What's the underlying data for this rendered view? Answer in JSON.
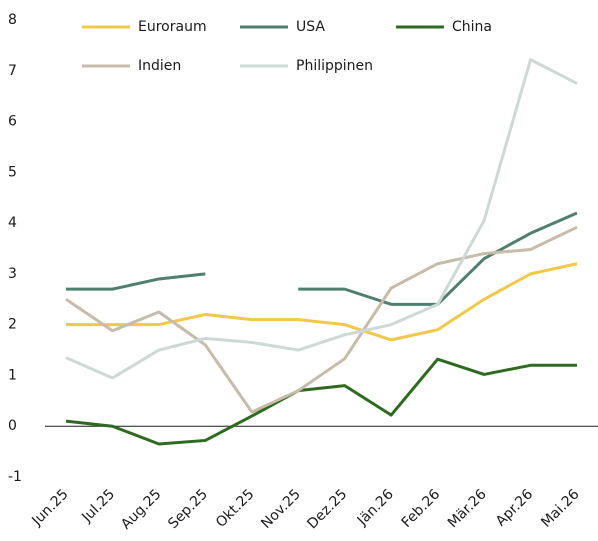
{
  "chart_data": {
    "type": "line",
    "categories": [
      "Jun.25",
      "Jul.25",
      "Aug.25",
      "Sep.25",
      "Okt.25",
      "Nov.25",
      "Dez.25",
      "Jän.26",
      "Feb.26",
      "Mär.26",
      "Apr.26",
      "Mai.26"
    ],
    "series": [
      {
        "name": "Euroraum",
        "color": "#f2c84b",
        "values": [
          2.0,
          2.0,
          2.0,
          2.2,
          2.1,
          2.1,
          2.0,
          1.7,
          1.9,
          2.5,
          3.0,
          3.2
        ]
      },
      {
        "name": "USA",
        "color": "#4f7f71",
        "values": [
          2.7,
          2.7,
          2.9,
          3.0,
          null,
          2.7,
          2.7,
          2.4,
          2.4,
          3.3,
          3.8,
          4.2
        ]
      },
      {
        "name": "China",
        "color": "#2e6a1f",
        "values": [
          0.1,
          0.0,
          -0.35,
          -0.28,
          0.2,
          0.7,
          0.8,
          0.22,
          1.32,
          1.02,
          1.2,
          1.2
        ]
      },
      {
        "name": "Indien",
        "color": "#c7bba9",
        "values": [
          2.5,
          1.88,
          2.25,
          1.6,
          0.28,
          0.7,
          1.33,
          2.72,
          3.2,
          3.4,
          3.48,
          3.92
        ]
      },
      {
        "name": "Philippinen",
        "color": "#cdd9d6",
        "values": [
          1.35,
          0.95,
          1.5,
          1.73,
          1.65,
          1.5,
          1.8,
          2.0,
          2.4,
          4.05,
          7.22,
          6.75
        ]
      }
    ],
    "ylim": [
      -1,
      8
    ],
    "yticks": [
      -1,
      0,
      1,
      2,
      3,
      4,
      5,
      6,
      7,
      8
    ],
    "grid": false,
    "legend": "top"
  }
}
